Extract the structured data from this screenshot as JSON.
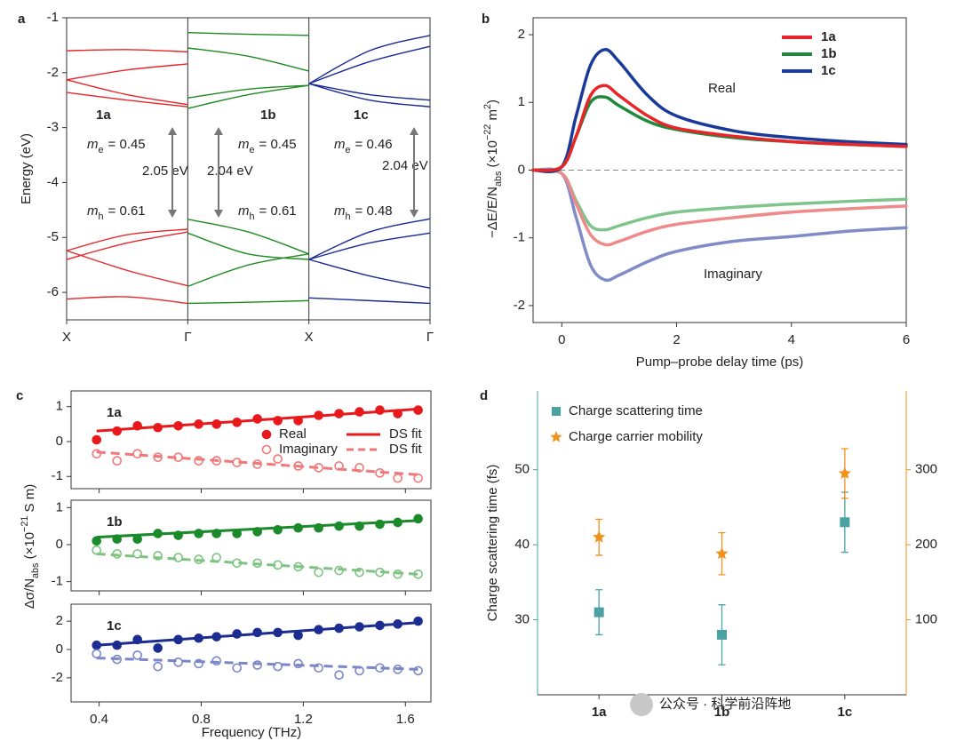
{
  "chart_data": [
    {
      "type": "band",
      "panel_label": "a",
      "ylabel": "Energy (eV)",
      "ylim": [
        -6.5,
        -1
      ],
      "yticks": [
        -1,
        -2,
        -3,
        -4,
        -5,
        -6
      ],
      "xlim": [
        0,
        3
      ],
      "xticks": [
        {
          "value": 0,
          "label": "X"
        },
        {
          "value": 1,
          "label": "Γ"
        },
        {
          "value": 2,
          "label": "X"
        },
        {
          "value": 3,
          "label": "Γ"
        }
      ],
      "materials": [
        "1a",
        "1b",
        "1c"
      ],
      "mass_symbol": "m",
      "electron_sub": "e",
      "hole_sub": "h",
      "electron_mass": [
        "= 0.45",
        "= 0.45",
        "= 0.46"
      ],
      "hole_mass": [
        "= 0.61",
        "= 0.61",
        "= 0.48"
      ],
      "gaps": [
        "2.05 eV",
        "2.04 eV",
        "2.04 eV"
      ],
      "series": [
        {
          "color": "#e8262a",
          "x": [
            0,
            0.5,
            1
          ],
          "values": [
            -1.6,
            -1.58,
            -1.62
          ]
        },
        {
          "color": "#e8262a",
          "x": [
            0,
            0.5,
            1
          ],
          "values": [
            -2.13,
            -1.95,
            -1.84
          ]
        },
        {
          "color": "#e8262a",
          "x": [
            0,
            0.5,
            1
          ],
          "values": [
            -2.36,
            -2.5,
            -2.62
          ]
        },
        {
          "color": "#e8262a",
          "x": [
            0,
            0.5,
            1
          ],
          "values": [
            -2.13,
            -2.4,
            -2.58
          ]
        },
        {
          "color": "#e8262a",
          "x": [
            0,
            0.5,
            1
          ],
          "values": [
            -5.24,
            -4.95,
            -4.85
          ]
        },
        {
          "color": "#e8262a",
          "x": [
            0,
            0.5,
            1
          ],
          "values": [
            -5.4,
            -5.1,
            -4.9
          ]
        },
        {
          "color": "#e8262a",
          "x": [
            0,
            0.5,
            1
          ],
          "values": [
            -5.24,
            -5.6,
            -5.88
          ]
        },
        {
          "color": "#e8262a",
          "x": [
            0,
            0.5,
            1
          ],
          "values": [
            -6.12,
            -6.08,
            -6.2
          ]
        },
        {
          "color": "#1e8a22",
          "x": [
            1,
            1.5,
            2
          ],
          "values": [
            -1.27,
            -1.3,
            -1.32
          ]
        },
        {
          "color": "#1e8a22",
          "x": [
            1,
            1.5,
            2
          ],
          "values": [
            -1.55,
            -1.7,
            -1.97
          ]
        },
        {
          "color": "#1e8a22",
          "x": [
            1,
            1.5,
            2
          ],
          "values": [
            -2.46,
            -2.3,
            -2.23
          ]
        },
        {
          "color": "#1e8a22",
          "x": [
            1,
            1.5,
            2
          ],
          "values": [
            -2.65,
            -2.4,
            -2.23
          ]
        },
        {
          "color": "#1e8a22",
          "x": [
            1,
            1.5,
            2
          ],
          "values": [
            -4.67,
            -4.9,
            -5.3
          ]
        },
        {
          "color": "#1e8a22",
          "x": [
            1,
            1.5,
            2
          ],
          "values": [
            -4.92,
            -5.3,
            -5.4
          ]
        },
        {
          "color": "#1e8a22",
          "x": [
            1,
            1.5,
            2
          ],
          "values": [
            -5.89,
            -5.5,
            -5.3
          ]
        },
        {
          "color": "#1e8a22",
          "x": [
            1,
            1.5,
            2
          ],
          "values": [
            -6.2,
            -6.18,
            -6.15
          ]
        },
        {
          "color": "#1a2a94",
          "x": [
            2,
            2.5,
            3
          ],
          "values": [
            -2.2,
            -1.6,
            -1.32
          ]
        },
        {
          "color": "#1a2a94",
          "x": [
            2,
            2.5,
            3
          ],
          "values": [
            -2.2,
            -1.8,
            -1.52
          ]
        },
        {
          "color": "#1a2a94",
          "x": [
            2,
            2.5,
            3
          ],
          "values": [
            -2.2,
            -2.4,
            -2.5
          ]
        },
        {
          "color": "#1a2a94",
          "x": [
            2,
            2.5,
            3
          ],
          "values": [
            -2.2,
            -2.5,
            -2.62
          ]
        },
        {
          "color": "#1a2a94",
          "x": [
            2,
            2.5,
            3
          ],
          "values": [
            -5.4,
            -4.9,
            -4.66
          ]
        },
        {
          "color": "#1a2a94",
          "x": [
            2,
            2.5,
            3
          ],
          "values": [
            -5.4,
            -5.1,
            -4.92
          ]
        },
        {
          "color": "#1a2a94",
          "x": [
            2,
            2.5,
            3
          ],
          "values": [
            -5.4,
            -5.7,
            -5.92
          ]
        },
        {
          "color": "#1a2a94",
          "x": [
            2,
            2.5,
            3
          ],
          "values": [
            -6.1,
            -6.15,
            -6.2
          ]
        }
      ]
    },
    {
      "type": "line",
      "panel_label": "b",
      "xlabel": "Pump–probe delay time (ps)",
      "ylabel": [
        {
          "text": "−ΔE/E/N"
        },
        {
          "text": "abs",
          "sub": true
        },
        {
          "text": " (×10"
        },
        {
          "text": "−22",
          "sup": true
        },
        {
          "text": " m"
        },
        {
          "text": "2",
          "sup": true
        },
        {
          "text": ")"
        }
      ],
      "xlim": [
        -0.5,
        6
      ],
      "xticks": [
        0,
        2,
        4,
        6
      ],
      "ylim": [
        -2.25,
        2.25
      ],
      "yticks": [
        -2,
        -1,
        0,
        1,
        2
      ],
      "zero_line": true,
      "legend": "top right",
      "annotations": [
        "Real",
        "Imaginary"
      ],
      "x": [
        -0.5,
        0,
        0.25,
        0.5,
        0.75,
        1,
        1.5,
        2,
        3,
        4,
        5,
        6
      ],
      "series": [
        {
          "name": "1a",
          "color": "#e8262a",
          "values": [
            0,
            0.05,
            0.5,
            1.1,
            1.25,
            1.1,
            0.8,
            0.62,
            0.5,
            0.42,
            0.38,
            0.35
          ]
        },
        {
          "name": "1b",
          "color": "#1e8a3a",
          "values": [
            0,
            0.05,
            0.5,
            1.0,
            1.08,
            0.95,
            0.72,
            0.6,
            0.48,
            0.42,
            0.38,
            0.35
          ]
        },
        {
          "name": "1c",
          "color": "#1a3a9a",
          "values": [
            0,
            0.05,
            0.8,
            1.55,
            1.78,
            1.6,
            1.1,
            0.8,
            0.58,
            0.48,
            0.42,
            0.38
          ]
        },
        {
          "color": "#f08a8a",
          "values": [
            0,
            -0.05,
            -0.5,
            -0.95,
            -1.1,
            -1.05,
            -0.9,
            -0.8,
            -0.7,
            -0.62,
            -0.57,
            -0.53
          ]
        },
        {
          "color": "#7fc48a",
          "values": [
            0,
            -0.05,
            -0.45,
            -0.82,
            -0.88,
            -0.82,
            -0.7,
            -0.62,
            -0.55,
            -0.5,
            -0.46,
            -0.43
          ]
        },
        {
          "color": "#7f8cc8",
          "values": [
            0,
            -0.05,
            -0.7,
            -1.4,
            -1.62,
            -1.55,
            -1.35,
            -1.2,
            -1.05,
            -0.98,
            -0.9,
            -0.85
          ]
        }
      ]
    },
    {
      "type": "scatter",
      "panel_label": "c",
      "label": "1a",
      "show_xtick_labels": false,
      "xlim": [
        0.29,
        1.7
      ],
      "xticks": [
        0.4,
        0.8,
        1.2,
        1.6
      ],
      "ylim": [
        -1.35,
        1.45
      ],
      "yticks": [
        -1,
        0,
        1
      ],
      "x": [
        0.39,
        0.47,
        0.55,
        0.63,
        0.71,
        0.79,
        0.86,
        0.94,
        1.02,
        1.1,
        1.18,
        1.26,
        1.34,
        1.42,
        1.5,
        1.57,
        1.65
      ],
      "series": [
        {
          "name": "Real",
          "color": "#e8191c",
          "marker": "filled",
          "values": [
            0.05,
            0.3,
            0.45,
            0.4,
            0.45,
            0.5,
            0.5,
            0.55,
            0.65,
            0.6,
            0.6,
            0.75,
            0.8,
            0.85,
            0.9,
            0.8,
            0.9
          ]
        },
        {
          "name": "Imaginary",
          "color": "#f07878",
          "marker": "open",
          "values": [
            -0.35,
            -0.55,
            -0.35,
            -0.45,
            -0.45,
            -0.55,
            -0.55,
            -0.6,
            -0.65,
            -0.5,
            -0.7,
            -0.75,
            -0.7,
            -0.75,
            -0.9,
            -1.05,
            -1.05
          ]
        },
        {
          "name": "DS fit",
          "color": "#e8191c",
          "dash": false,
          "x": [
            0.39,
            1.65
          ],
          "values": [
            0.3,
            0.93
          ]
        },
        {
          "name": "DS fit",
          "color": "#f07878",
          "dash": true,
          "x": [
            0.39,
            1.65
          ],
          "values": [
            -0.3,
            -0.95
          ]
        }
      ]
    },
    {
      "type": "scatter",
      "label": "1b",
      "show_xtick_labels": false,
      "ylabel": [
        {
          "text": "Δσ/N"
        },
        {
          "text": "abs",
          "sub": true
        },
        {
          "text": " (×10"
        },
        {
          "text": "−21",
          "sup": true
        },
        {
          "text": " S m)"
        }
      ],
      "xlim": [
        0.29,
        1.7
      ],
      "xticks": [
        0.4,
        0.8,
        1.2,
        1.6
      ],
      "ylim": [
        -1.25,
        1.2
      ],
      "yticks": [
        -1,
        0,
        1
      ],
      "x": [
        0.39,
        0.47,
        0.55,
        0.63,
        0.71,
        0.79,
        0.86,
        0.94,
        1.02,
        1.1,
        1.18,
        1.26,
        1.34,
        1.42,
        1.5,
        1.57,
        1.65
      ],
      "series": [
        {
          "color": "#1a8a2a",
          "marker": "filled",
          "values": [
            0.1,
            0.15,
            0.15,
            0.3,
            0.25,
            0.3,
            0.3,
            0.3,
            0.35,
            0.4,
            0.45,
            0.45,
            0.5,
            0.5,
            0.55,
            0.6,
            0.7
          ]
        },
        {
          "color": "#7cc47f",
          "marker": "open",
          "values": [
            -0.15,
            -0.25,
            -0.25,
            -0.3,
            -0.35,
            -0.4,
            -0.35,
            -0.5,
            -0.5,
            -0.55,
            -0.6,
            -0.75,
            -0.7,
            -0.75,
            -0.75,
            -0.8,
            -0.8
          ]
        },
        {
          "color": "#1a8a2a",
          "dash": false,
          "x": [
            0.39,
            1.65
          ],
          "values": [
            0.2,
            0.65
          ]
        },
        {
          "color": "#7cc47f",
          "dash": true,
          "x": [
            0.39,
            1.65
          ],
          "values": [
            -0.25,
            -0.8
          ]
        }
      ]
    },
    {
      "type": "scatter",
      "label": "1c",
      "show_xtick_labels": true,
      "xlabel": "Frequency (THz)",
      "xlim": [
        0.29,
        1.7
      ],
      "xticks": [
        0.4,
        0.8,
        1.2,
        1.6
      ],
      "ylim": [
        -3.7,
        3.2
      ],
      "yticks": [
        -2,
        0,
        2
      ],
      "x": [
        0.39,
        0.47,
        0.55,
        0.63,
        0.71,
        0.79,
        0.86,
        0.94,
        1.02,
        1.1,
        1.18,
        1.26,
        1.34,
        1.42,
        1.5,
        1.57,
        1.65
      ],
      "series": [
        {
          "color": "#1c2d91",
          "marker": "filled",
          "values": [
            0.3,
            0.3,
            0.7,
            0.1,
            0.7,
            0.8,
            0.9,
            1.1,
            1.2,
            1.2,
            1.0,
            1.4,
            1.5,
            1.6,
            1.7,
            1.8,
            2.0
          ]
        },
        {
          "color": "#7b86c8",
          "marker": "open",
          "values": [
            -0.3,
            -0.7,
            -0.4,
            -1.2,
            -0.9,
            -1.0,
            -0.8,
            -1.3,
            -1.1,
            -1.2,
            -1.0,
            -1.3,
            -1.8,
            -1.5,
            -1.3,
            -1.4,
            -1.5
          ]
        },
        {
          "color": "#1c2d91",
          "dash": false,
          "x": [
            0.39,
            1.65
          ],
          "values": [
            0.3,
            1.9
          ]
        },
        {
          "color": "#7b86c8",
          "dash": true,
          "x": [
            0.39,
            1.65
          ],
          "values": [
            -0.6,
            -1.4
          ]
        }
      ]
    },
    {
      "type": "errorbar",
      "panel_label": "d",
      "ylabel": "Charge scattering time (fs)",
      "categories": [
        "1a",
        "1b",
        "1c"
      ],
      "ylim": [
        20,
        60.5
      ],
      "yticks": [
        30,
        40,
        50
      ],
      "y2lim": [
        0,
        405
      ],
      "y2ticks": [
        100,
        200,
        300
      ],
      "legend": "top left",
      "watermark": "公众号 · 科学前沿阵地",
      "series": [
        {
          "name": "Charge scattering time",
          "color": "#4aa3a2",
          "marker": "square",
          "values": [
            31,
            28,
            43
          ],
          "errors": [
            3,
            4,
            4
          ]
        },
        {
          "name": "Charge carrier mobility",
          "color": "#f0921e",
          "marker": "star",
          "axis": "y2",
          "values": [
            210,
            188,
            295
          ],
          "errors": [
            24,
            28,
            33
          ]
        }
      ]
    }
  ]
}
